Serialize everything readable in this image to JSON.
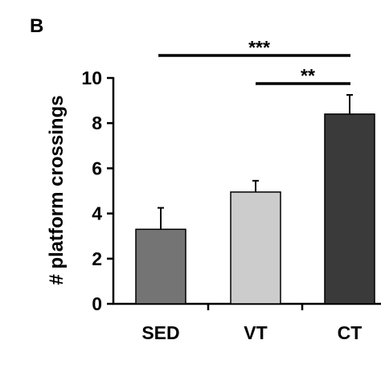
{
  "panel_label": "B",
  "chart_data": {
    "type": "bar",
    "title": "",
    "xlabel": "",
    "ylabel": "# platform crossings",
    "ylim": [
      0,
      10
    ],
    "yticks": [
      0,
      2,
      4,
      6,
      8,
      10
    ],
    "categories": [
      "SED",
      "VT",
      "CT"
    ],
    "values": [
      3.3,
      4.95,
      8.4
    ],
    "errors": [
      0.95,
      0.5,
      0.85
    ],
    "colors": [
      "#747474",
      "#cccccc",
      "#3a3a3a"
    ],
    "grid": false,
    "significance": [
      {
        "from": 0,
        "to": 2,
        "label": "***"
      },
      {
        "from": 1,
        "to": 2,
        "label": "**"
      }
    ]
  }
}
